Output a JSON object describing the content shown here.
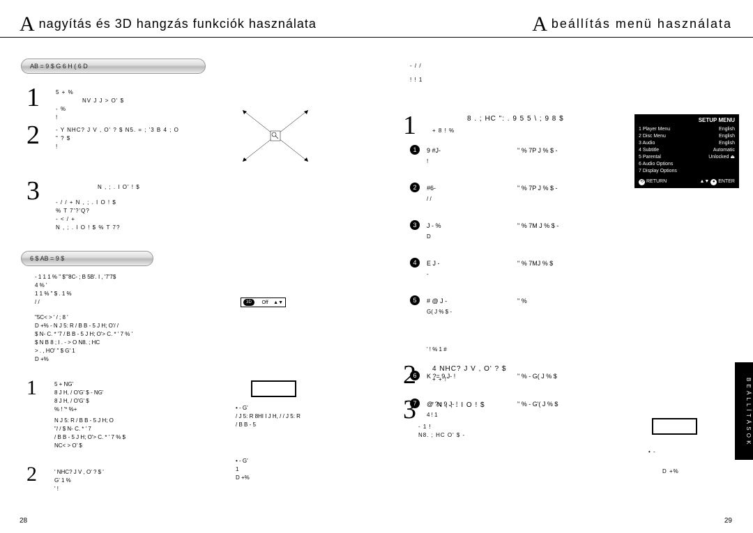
{
  "left": {
    "title_prefix": "A",
    "title": "nagyítás és 3D hangzás funkciók használata",
    "pill1": "AB   = 9 $            G   6 H ( 6 D",
    "pill2": "6 $        AB    = 9 $",
    "steps_a": [
      "1",
      "2",
      "3"
    ],
    "steps_b": [
      "1",
      "2"
    ],
    "text_a1": "5        +                               %",
    "text_a1b": "NV J J > O'           $",
    "text_a1c": "-                               %",
    "text_a1d": "!",
    "text_a2": "- Y NHC? J V , O'     ?   $       N5. = ;  '3  B 4 ; O",
    "text_a2b": "\"     ?     $",
    "text_a2c": "!",
    "text_a3": "N , ; . I O'       !    $",
    "text_a3rows": [
      "- /  /            +                        N , ; . I O     !   $",
      "                  %     T 7'?'Q?",
      "-  < /            +",
      "N , ; . I O    !   $                  %    T 7?"
    ],
    "block_b_lines": [
      "-     1     1   1  %       \"        $'\"8C- ; B 5B'. I  , '7'7$",
      "                           4                                 %        '",
      "    1   1  %       \"      $     .        1     %",
      "                             /  /",
      "\"5C< > '          / ; 8 '",
      "  D +% -         N J 5: R / B B - 5 J H; O'/       /",
      "       $          N- C. * '7 / B B - 5 J H; O'> C. * ' 7 %   '",
      "          $ N B 8 ; I . - > O            N8. ; HC",
      "> . , HO'        \"           $    G'              1",
      "D +%"
    ],
    "b1_lines": [
      "5          +                          NG'",
      "8 J H,  / O'G'           $           -  NG'",
      "8 J H,  / O'G'           $",
      "       %             !       '*          %+"
    ],
    "b1_extra": [
      "             N J 5: R / B B - 5 J H; O",
      "\"/         /               $        N- C. * ' 7",
      "/ B B - 5 J H; O'> C. * ' 7 %         $",
      "NC< > O'                 $"
    ],
    "b2_lines": [
      "'          NHC? J V , O'    ?   $        '",
      "   G'           1    %",
      "'     !"
    ],
    "right_mini_labels": [
      "• - G'",
      "/ J 5: R 8HI I J H, /        / J 5: R",
      "/ B B - 5",
      "• -                               G'",
      "                           1",
      "D +%"
    ],
    "page_number": "28"
  },
  "right": {
    "title_prefix": "A",
    "title": "beállítás menü használata",
    "intro_lines": [
      "-                                       /   /",
      "                 !                 ! 1"
    ],
    "step1_head": "8 . ; HC \": . 9 5 5 \\ ; 9 8 $",
    "step1_sub": "+                    8    !              %",
    "menu_items": [
      {
        "n": "1",
        "label": "9      #J-",
        "desc": "\" % 7P J  %     $  -",
        "extra": "!"
      },
      {
        "n": "2",
        "label": "#6-",
        "desc": "\" % 7P J  %     $  -",
        "extra": "/   /"
      },
      {
        "n": "3",
        "label": "J -        %",
        "desc": "\" % 7M J  %    $  -",
        "extra": "D"
      },
      {
        "n": "4",
        "label": "E         J -",
        "desc": "\" % 7MJ  %    $",
        "extra": "-"
      },
      {
        "n": "5",
        "label": "# @        J -",
        "desc": "\" %",
        "extra": "G( J  %     $  -"
      },
      {
        "n": "",
        "label": "",
        "desc": "",
        "extra": "'                          !   % 1                           #"
      },
      {
        "n": "6",
        "label": "K      ?= 9 J-        !",
        "desc": "\" % -  G(  J  %    $",
        "extra": ""
      },
      {
        "n": "7",
        "label": "@  ?= 9 J-        !",
        "desc": "\" % -  G'(  J  %   $",
        "extra": "4                                                       ! 1"
      }
    ],
    "step2": "4          NHC? J V , O'    ?   $",
    "step2_sub": "           +   +            !",
    "step3": "'          N , ; . I O        !   $",
    "step3_sub": [
      "-              1                    !",
      "         N8. ; HC O'           $                   -"
    ],
    "note": [
      "• -",
      "",
      "D +%"
    ],
    "setup_menu": {
      "title": "SETUP MENU",
      "rows": [
        [
          "1  Player Menu",
          "English"
        ],
        [
          "2  Disc Menu",
          "English"
        ],
        [
          "3  Audio",
          "English"
        ],
        [
          "4  Subtitle",
          "Automatic"
        ],
        [
          "5  Parental",
          "Unlocked ⏏"
        ],
        [
          "6  Audio Options",
          ""
        ],
        [
          "7  Display Options",
          ""
        ]
      ],
      "return": "RETURN",
      "enter": "ENTER"
    },
    "tab_text": "B E Á L L Í T Á S O K",
    "page_number": "29"
  }
}
